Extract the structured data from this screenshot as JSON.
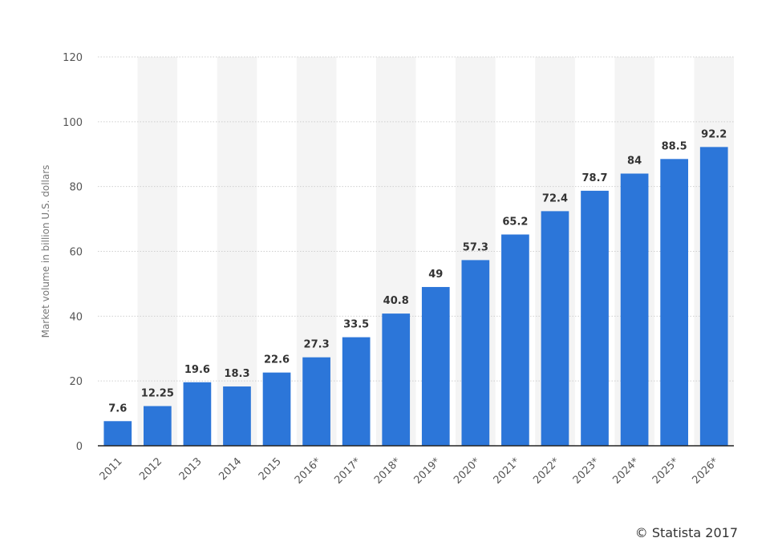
{
  "chart_data": {
    "type": "bar",
    "categories": [
      "2011",
      "2012",
      "2013",
      "2014",
      "2015",
      "2016*",
      "2017*",
      "2018*",
      "2019*",
      "2020*",
      "2021*",
      "2022*",
      "2023*",
      "2024*",
      "2025*",
      "2026*"
    ],
    "values": [
      7.6,
      12.25,
      19.6,
      18.3,
      22.6,
      27.3,
      33.5,
      40.8,
      49,
      57.3,
      65.2,
      72.4,
      78.7,
      84,
      88.5,
      92.2
    ],
    "value_labels": [
      "7.6",
      "12.25",
      "19.6",
      "18.3",
      "22.6",
      "27.3",
      "33.5",
      "40.8",
      "49",
      "57.3",
      "65.2",
      "72.4",
      "78.7",
      "84",
      "88.5",
      "92.2"
    ],
    "title": "",
    "xlabel": "",
    "ylabel": "Market volume in billion U.S. dollars",
    "ylim": [
      0,
      120
    ],
    "yticks": [
      "0",
      "20",
      "40",
      "60",
      "80",
      "100",
      "120"
    ],
    "grid": true,
    "legend": "none"
  },
  "colors": {
    "bar": "#2c76d9",
    "band": "#f4f4f4",
    "grid": "#cfcfcf",
    "axis": "#222222",
    "tick_text": "#555555",
    "value_text": "#333333"
  },
  "credit": "© Statista 2017"
}
